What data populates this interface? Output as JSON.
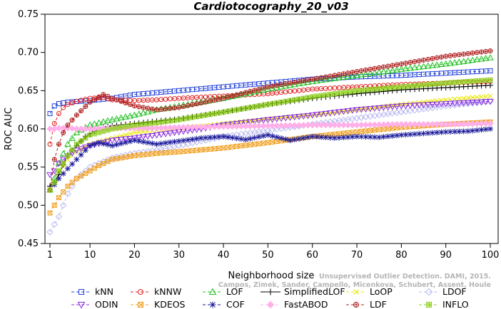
{
  "chart_data": {
    "type": "line",
    "title": "Cardiotocography_20_v03",
    "xlabel": "Neighborhood size",
    "ylabel": "ROC AUC",
    "xlim": [
      1,
      100
    ],
    "ylim": [
      0.45,
      0.75
    ],
    "xticks": [
      "1",
      "10",
      "20",
      "30",
      "40",
      "50",
      "60",
      "70",
      "80",
      "90",
      "100"
    ],
    "yticks": [
      "0.45",
      "0.50",
      "0.55",
      "0.60",
      "0.65",
      "0.70",
      "0.75"
    ],
    "grid": false,
    "legend_position": "bottom",
    "credit_lines": [
      "Unsupervised Outlier Detection. DAMI, 2015.",
      "Campos, Zimek, Sander, Campello, Micenkova, Schubert, Assent, Houle"
    ],
    "series": [
      {
        "name": "kNN",
        "color": "#1f3fd8",
        "marker": "square",
        "dash": "4,3",
        "x": [
          1,
          2,
          3,
          5,
          10,
          15,
          20,
          30,
          40,
          50,
          60,
          70,
          80,
          90,
          100
        ],
        "y": [
          0.62,
          0.63,
          0.633,
          0.635,
          0.637,
          0.64,
          0.645,
          0.65,
          0.655,
          0.66,
          0.665,
          0.668,
          0.67,
          0.673,
          0.676
        ]
      },
      {
        "name": "kNNW",
        "color": "#e02020",
        "marker": "circle",
        "dash": "4,3",
        "x": [
          1,
          2,
          3,
          4,
          5,
          7,
          10,
          13,
          15,
          20,
          25,
          30,
          40,
          50,
          60,
          70,
          80,
          90,
          100
        ],
        "y": [
          0.58,
          0.607,
          0.62,
          0.628,
          0.632,
          0.636,
          0.64,
          0.641,
          0.638,
          0.637,
          0.638,
          0.64,
          0.643,
          0.646,
          0.652,
          0.655,
          0.658,
          0.66,
          0.662
        ]
      },
      {
        "name": "LOF",
        "color": "#22c022",
        "marker": "triangle",
        "dash": "4,3",
        "x": [
          1,
          2,
          3,
          5,
          7,
          10,
          15,
          20,
          25,
          30,
          40,
          50,
          60,
          70,
          80,
          90,
          100
        ],
        "y": [
          0.52,
          0.535,
          0.555,
          0.58,
          0.595,
          0.605,
          0.612,
          0.618,
          0.625,
          0.63,
          0.64,
          0.652,
          0.662,
          0.67,
          0.678,
          0.685,
          0.693
        ]
      },
      {
        "name": "SimplifiedLOF",
        "color": "#000000",
        "marker": "plus",
        "dash": "",
        "x": [
          1,
          2,
          3,
          4,
          5,
          7,
          9,
          11,
          13,
          15,
          20,
          25,
          30,
          40,
          50,
          60,
          70,
          80,
          90,
          100
        ],
        "y": [
          0.525,
          0.53,
          0.54,
          0.553,
          0.566,
          0.578,
          0.59,
          0.597,
          0.602,
          0.604,
          0.607,
          0.61,
          0.613,
          0.622,
          0.632,
          0.64,
          0.646,
          0.651,
          0.654,
          0.657
        ]
      },
      {
        "name": "LoOP",
        "color": "#e8e800",
        "marker": "x",
        "dash": "4,3",
        "x": [
          1,
          2,
          3,
          5,
          7,
          10,
          15,
          20,
          25,
          30,
          40,
          50,
          60,
          70,
          80,
          90,
          100
        ],
        "y": [
          0.52,
          0.53,
          0.545,
          0.56,
          0.57,
          0.58,
          0.588,
          0.595,
          0.598,
          0.6,
          0.607,
          0.613,
          0.618,
          0.625,
          0.632,
          0.638,
          0.643
        ]
      },
      {
        "name": "LDOF",
        "color": "#b8b8f0",
        "marker": "diamond",
        "dash": "4,3",
        "x": [
          1,
          2,
          3,
          4,
          5,
          7,
          10,
          15,
          20,
          25,
          30,
          40,
          50,
          60,
          70,
          80,
          90,
          100
        ],
        "y": [
          0.465,
          0.475,
          0.485,
          0.5,
          0.515,
          0.535,
          0.55,
          0.562,
          0.568,
          0.572,
          0.578,
          0.59,
          0.598,
          0.606,
          0.614,
          0.622,
          0.63,
          0.636
        ]
      },
      {
        "name": "ODIN",
        "color": "#8a2be2",
        "marker": "triangle-down",
        "dash": "4,3",
        "x": [
          1,
          2,
          3,
          5,
          7,
          10,
          15,
          20,
          25,
          30,
          35,
          40,
          50,
          60,
          70,
          80,
          90,
          100
        ],
        "y": [
          0.54,
          0.545,
          0.555,
          0.565,
          0.572,
          0.578,
          0.585,
          0.588,
          0.592,
          0.596,
          0.6,
          0.605,
          0.612,
          0.618,
          0.625,
          0.63,
          0.633,
          0.636
        ]
      },
      {
        "name": "KDEOS",
        "color": "#f0a020",
        "marker": "square-x",
        "dash": "4,3",
        "x": [
          1,
          2,
          3,
          5,
          7,
          10,
          12,
          15,
          20,
          25,
          30,
          40,
          50,
          60,
          70,
          80,
          90,
          100
        ],
        "y": [
          0.49,
          0.5,
          0.51,
          0.525,
          0.535,
          0.545,
          0.552,
          0.56,
          0.565,
          0.568,
          0.57,
          0.575,
          0.582,
          0.59,
          0.596,
          0.602,
          0.606,
          0.609
        ]
      },
      {
        "name": "COF",
        "color": "#1a1a9a",
        "marker": "asterisk",
        "dash": "4,3",
        "x": [
          1,
          2,
          3,
          5,
          7,
          10,
          12,
          15,
          20,
          25,
          30,
          35,
          40,
          45,
          50,
          55,
          60,
          65,
          70,
          75,
          80,
          85,
          90,
          95,
          100
        ],
        "y": [
          0.52,
          0.527,
          0.535,
          0.548,
          0.56,
          0.578,
          0.582,
          0.578,
          0.585,
          0.58,
          0.584,
          0.588,
          0.59,
          0.586,
          0.592,
          0.585,
          0.59,
          0.588,
          0.59,
          0.589,
          0.592,
          0.594,
          0.596,
          0.597,
          0.6
        ]
      },
      {
        "name": "FastABOD",
        "color": "#ffb0e8",
        "marker": "diamond-filled",
        "dash": "4,3",
        "x": [
          1,
          2,
          3,
          5,
          7,
          10,
          15,
          20,
          25,
          30,
          40,
          50,
          60,
          70,
          80,
          90,
          100
        ],
        "y": [
          0.6,
          0.6,
          0.601,
          0.601,
          0.6,
          0.6,
          0.601,
          0.601,
          0.601,
          0.602,
          0.603,
          0.604,
          0.605,
          0.605,
          0.606,
          0.606,
          0.607
        ]
      },
      {
        "name": "LDF",
        "color": "#b02020",
        "marker": "circle-plus",
        "dash": "4,3",
        "x": [
          1,
          2,
          3,
          4,
          5,
          7,
          10,
          13,
          15,
          20,
          25,
          30,
          40,
          50,
          60,
          70,
          80,
          90,
          100
        ],
        "y": [
          0.52,
          0.56,
          0.58,
          0.595,
          0.605,
          0.618,
          0.635,
          0.645,
          0.64,
          0.63,
          0.625,
          0.628,
          0.64,
          0.655,
          0.665,
          0.675,
          0.685,
          0.695,
          0.702
        ]
      },
      {
        "name": "INFLO",
        "color": "#90d020",
        "marker": "square-hash",
        "dash": "4,3",
        "x": [
          1,
          2,
          3,
          5,
          7,
          10,
          15,
          20,
          25,
          30,
          40,
          50,
          60,
          70,
          80,
          90,
          100
        ],
        "y": [
          0.52,
          0.53,
          0.545,
          0.565,
          0.58,
          0.592,
          0.6,
          0.605,
          0.608,
          0.612,
          0.622,
          0.632,
          0.642,
          0.65,
          0.655,
          0.66,
          0.664
        ]
      }
    ]
  }
}
